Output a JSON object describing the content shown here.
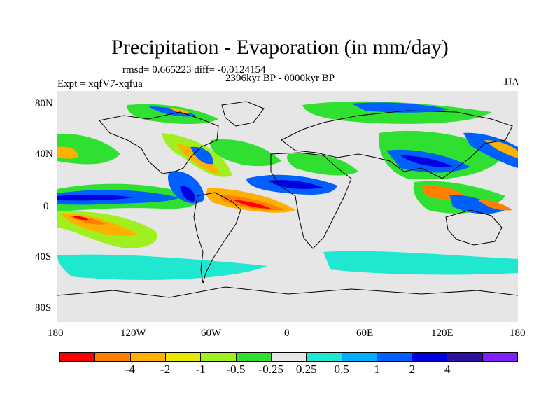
{
  "title": "Precipitation - Evaporation (in mm/day)",
  "stats": "rmsd= 0.665223 diff= -0.0124154",
  "period": "2396kyr BP - 0000kyr BP",
  "experiment": "Expt = xqfV7-xqfua",
  "season": "JJA",
  "lat_labels": [
    "80N",
    "40N",
    "0",
    "40S",
    "80S"
  ],
  "lon_labels": [
    "180",
    "120W",
    "60W",
    "0",
    "60E",
    "120E",
    "180"
  ],
  "colorbar": {
    "colors": [
      "#ff0000",
      "#ff8000",
      "#ffb000",
      "#e8e800",
      "#a0f020",
      "#30e030",
      "#e6e6e6",
      "#20e8d0",
      "#00b0ff",
      "#0060ff",
      "#0000e0",
      "#3010a0",
      "#8020ff"
    ],
    "labels": [
      "-4",
      "-2",
      "-1",
      "-0.5",
      "-0.25",
      "0.25",
      "0.5",
      "1",
      "2",
      "4"
    ]
  },
  "chart_data": {
    "type": "heatmap",
    "title": "Precipitation - Evaporation (in mm/day)",
    "subtitle": "2396kyr BP - 0000kyr BP",
    "x_range": [
      -180,
      180
    ],
    "y_range": [
      -90,
      90
    ],
    "levels": [
      -4,
      -2,
      -1,
      -0.5,
      -0.25,
      0.25,
      0.5,
      1,
      2,
      4
    ],
    "background": "land/ocean outline with gray neutral band (-0.25 to 0.25)"
  }
}
